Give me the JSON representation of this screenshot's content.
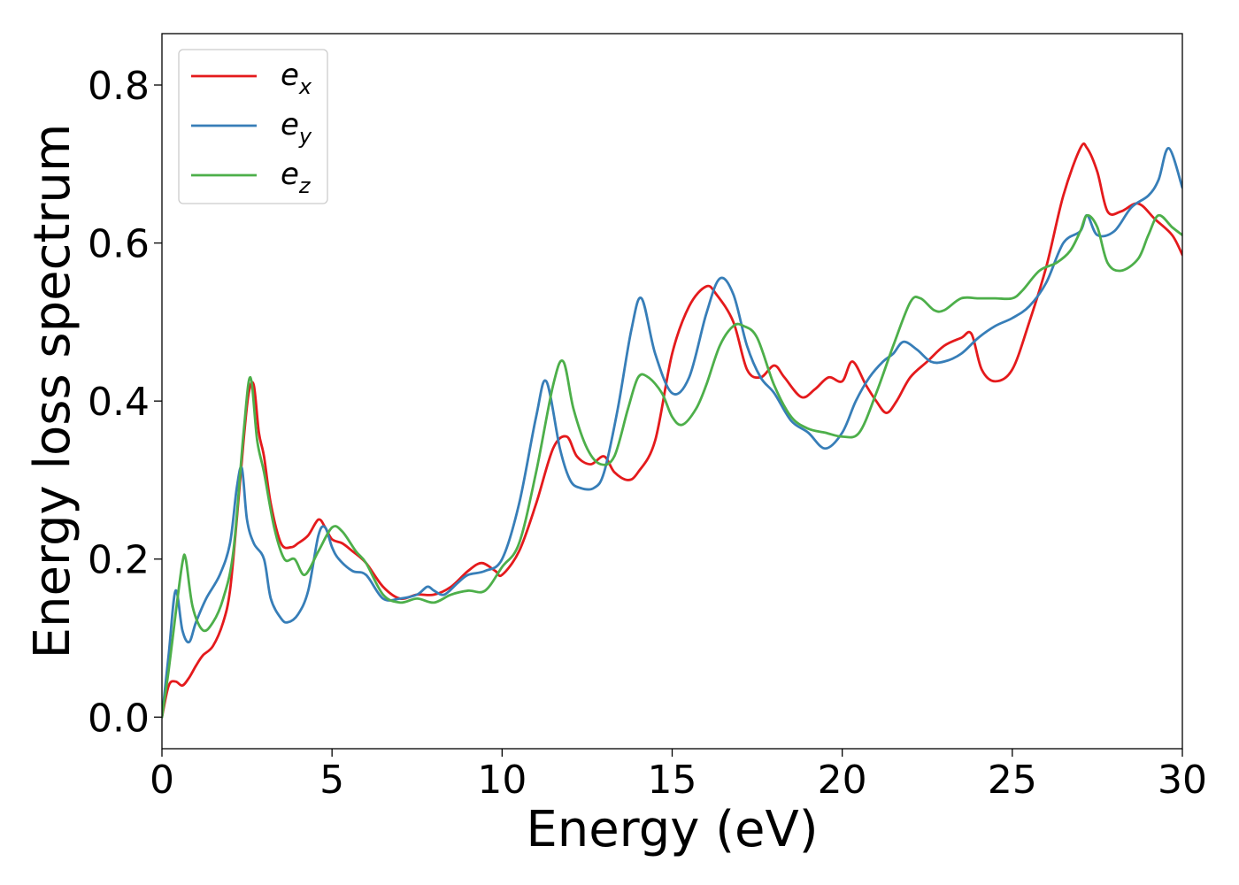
{
  "chart_data": {
    "type": "line",
    "xlabel": "Energy (eV)",
    "ylabel": "Energy loss spectrum",
    "xlim": [
      0,
      30
    ],
    "ylim": [
      -0.04,
      0.865
    ],
    "xticks": [
      0,
      5,
      10,
      15,
      20,
      25,
      30
    ],
    "yticks": [
      0.0,
      0.2,
      0.4,
      0.6,
      0.8
    ],
    "xtick_labels": [
      "0",
      "5",
      "10",
      "15",
      "20",
      "25",
      "30"
    ],
    "ytick_labels": [
      "0.0",
      "0.2",
      "0.4",
      "0.6",
      "0.8"
    ],
    "grid": false,
    "legend": "top-left",
    "series": [
      {
        "name": "e",
        "name_sub": "x",
        "color": "#e41a1c",
        "x": [
          0,
          0.2,
          0.4,
          0.6,
          0.8,
          1.0,
          1.2,
          1.5,
          1.8,
          2.0,
          2.2,
          2.4,
          2.55,
          2.7,
          2.85,
          3.0,
          3.2,
          3.5,
          3.8,
          4.0,
          4.3,
          4.6,
          4.8,
          5.0,
          5.3,
          5.6,
          6.0,
          6.5,
          7.0,
          7.5,
          8.0,
          8.5,
          9.0,
          9.4,
          9.8,
          10.0,
          10.5,
          11.0,
          11.5,
          11.9,
          12.2,
          12.6,
          13.0,
          13.3,
          13.7,
          14.0,
          14.5,
          15.0,
          15.5,
          16.0,
          16.3,
          16.8,
          17.2,
          17.6,
          18.0,
          18.3,
          18.8,
          19.2,
          19.6,
          20.0,
          20.3,
          20.7,
          21.0,
          21.3,
          21.6,
          22.0,
          22.5,
          23.0,
          23.5,
          23.8,
          24.1,
          24.5,
          25.0,
          25.5,
          26.0,
          26.5,
          27.0,
          27.2,
          27.5,
          27.8,
          28.2,
          28.7,
          29.2,
          29.7,
          30.0
        ],
        "values": [
          0.0,
          0.04,
          0.045,
          0.04,
          0.05,
          0.065,
          0.078,
          0.09,
          0.12,
          0.16,
          0.25,
          0.35,
          0.41,
          0.42,
          0.36,
          0.33,
          0.27,
          0.22,
          0.215,
          0.22,
          0.23,
          0.25,
          0.24,
          0.225,
          0.22,
          0.21,
          0.195,
          0.165,
          0.15,
          0.155,
          0.155,
          0.165,
          0.185,
          0.195,
          0.185,
          0.18,
          0.21,
          0.27,
          0.34,
          0.355,
          0.33,
          0.32,
          0.33,
          0.31,
          0.3,
          0.31,
          0.35,
          0.46,
          0.52,
          0.545,
          0.535,
          0.5,
          0.44,
          0.43,
          0.445,
          0.43,
          0.405,
          0.415,
          0.43,
          0.425,
          0.45,
          0.42,
          0.4,
          0.385,
          0.4,
          0.43,
          0.45,
          0.47,
          0.48,
          0.485,
          0.44,
          0.425,
          0.44,
          0.5,
          0.57,
          0.66,
          0.72,
          0.72,
          0.69,
          0.64,
          0.64,
          0.65,
          0.63,
          0.61,
          0.585
        ]
      },
      {
        "name": "e",
        "name_sub": "y",
        "color": "#377eb8",
        "x": [
          0,
          0.2,
          0.4,
          0.6,
          0.8,
          1.0,
          1.3,
          1.7,
          2.0,
          2.2,
          2.35,
          2.5,
          2.7,
          3.0,
          3.2,
          3.5,
          3.7,
          4.0,
          4.3,
          4.6,
          4.8,
          5.0,
          5.2,
          5.6,
          6.0,
          6.5,
          7.0,
          7.5,
          7.8,
          8.0,
          8.3,
          8.7,
          9.0,
          9.5,
          10.0,
          10.5,
          11.0,
          11.3,
          11.7,
          12.0,
          12.3,
          12.7,
          13.0,
          13.4,
          13.8,
          14.1,
          14.5,
          15.0,
          15.5,
          16.0,
          16.4,
          16.8,
          17.2,
          17.6,
          18.0,
          18.5,
          19.0,
          19.5,
          20.0,
          20.4,
          20.8,
          21.2,
          21.5,
          21.8,
          22.2,
          22.6,
          23.0,
          23.5,
          24.0,
          24.5,
          25.0,
          25.5,
          26.0,
          26.5,
          27.0,
          27.2,
          27.5,
          28.0,
          28.5,
          29.0,
          29.3,
          29.6,
          30.0
        ],
        "values": [
          0.0,
          0.08,
          0.16,
          0.11,
          0.095,
          0.12,
          0.15,
          0.18,
          0.22,
          0.29,
          0.315,
          0.25,
          0.22,
          0.2,
          0.15,
          0.125,
          0.12,
          0.13,
          0.16,
          0.23,
          0.24,
          0.215,
          0.2,
          0.185,
          0.18,
          0.15,
          0.15,
          0.155,
          0.165,
          0.16,
          0.155,
          0.17,
          0.18,
          0.185,
          0.2,
          0.27,
          0.38,
          0.425,
          0.34,
          0.3,
          0.29,
          0.29,
          0.31,
          0.39,
          0.49,
          0.53,
          0.46,
          0.41,
          0.43,
          0.51,
          0.555,
          0.535,
          0.47,
          0.43,
          0.41,
          0.375,
          0.36,
          0.34,
          0.36,
          0.4,
          0.43,
          0.45,
          0.46,
          0.475,
          0.465,
          0.45,
          0.45,
          0.46,
          0.48,
          0.495,
          0.505,
          0.52,
          0.55,
          0.6,
          0.615,
          0.635,
          0.61,
          0.615,
          0.645,
          0.66,
          0.68,
          0.72,
          0.67
        ]
      },
      {
        "name": "e",
        "name_sub": "z",
        "color": "#4daf4a",
        "x": [
          0,
          0.2,
          0.4,
          0.6,
          0.7,
          0.9,
          1.2,
          1.5,
          1.8,
          2.1,
          2.4,
          2.6,
          2.8,
          3.0,
          3.3,
          3.6,
          3.9,
          4.2,
          4.6,
          5.0,
          5.3,
          5.7,
          6.0,
          6.5,
          7.0,
          7.5,
          8.0,
          8.5,
          9.0,
          9.5,
          10.0,
          10.5,
          11.0,
          11.5,
          11.8,
          12.1,
          12.5,
          12.9,
          13.3,
          13.7,
          14.0,
          14.3,
          14.7,
          15.0,
          15.3,
          15.7,
          16.0,
          16.4,
          16.8,
          17.1,
          17.5,
          18.0,
          18.5,
          19.0,
          19.5,
          20.0,
          20.5,
          21.0,
          21.5,
          22.0,
          22.3,
          22.7,
          23.0,
          23.5,
          24.0,
          24.5,
          25.0,
          25.3,
          25.8,
          26.3,
          26.7,
          27.0,
          27.2,
          27.5,
          27.8,
          28.2,
          28.7,
          29.0,
          29.3,
          29.7,
          30.0
        ],
        "values": [
          0.0,
          0.06,
          0.13,
          0.195,
          0.2,
          0.14,
          0.11,
          0.12,
          0.15,
          0.21,
          0.36,
          0.43,
          0.35,
          0.31,
          0.24,
          0.2,
          0.2,
          0.18,
          0.21,
          0.24,
          0.235,
          0.21,
          0.195,
          0.155,
          0.145,
          0.15,
          0.145,
          0.155,
          0.16,
          0.16,
          0.19,
          0.22,
          0.31,
          0.42,
          0.45,
          0.39,
          0.34,
          0.32,
          0.33,
          0.39,
          0.43,
          0.43,
          0.41,
          0.38,
          0.37,
          0.39,
          0.42,
          0.47,
          0.495,
          0.495,
          0.48,
          0.42,
          0.38,
          0.365,
          0.36,
          0.355,
          0.36,
          0.41,
          0.47,
          0.525,
          0.53,
          0.515,
          0.515,
          0.53,
          0.53,
          0.53,
          0.53,
          0.54,
          0.565,
          0.575,
          0.59,
          0.615,
          0.635,
          0.62,
          0.575,
          0.565,
          0.58,
          0.61,
          0.635,
          0.62,
          0.61
        ]
      }
    ]
  }
}
